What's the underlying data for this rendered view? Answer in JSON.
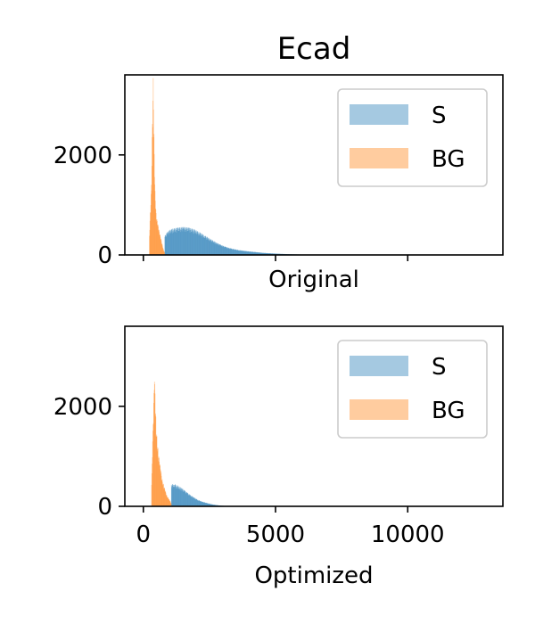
{
  "figure": {
    "title": "Ecad"
  },
  "chart_data": [
    {
      "type": "histogram",
      "xlabel": "Original",
      "ylabel": "",
      "xlim": [
        -700,
        13600
      ],
      "ylim": [
        0,
        3600
      ],
      "x_ticks": [
        0,
        5000,
        10000
      ],
      "x_tick_labels_shown": false,
      "y_ticks": [
        0,
        2000
      ],
      "y_tick_labels": [
        "0",
        "2000"
      ],
      "legend": {
        "placement": "upper right",
        "entries": [
          "S",
          "BG"
        ]
      },
      "series": [
        {
          "name": "S",
          "color": "#1f77b4",
          "opacity": 0.4,
          "points": [
            [
              800,
              350
            ],
            [
              900,
              420
            ],
            [
              1000,
              460
            ],
            [
              1100,
              480
            ],
            [
              1300,
              500
            ],
            [
              1500,
              510
            ],
            [
              1700,
              500
            ],
            [
              1900,
              470
            ],
            [
              2100,
              420
            ],
            [
              2300,
              360
            ],
            [
              2500,
              300
            ],
            [
              2700,
              240
            ],
            [
              2900,
              190
            ],
            [
              3100,
              150
            ],
            [
              3300,
              120
            ],
            [
              3600,
              90
            ],
            [
              3900,
              70
            ],
            [
              4200,
              55
            ],
            [
              4500,
              40
            ],
            [
              4800,
              30
            ],
            [
              5200,
              20
            ],
            [
              5600,
              12
            ],
            [
              6000,
              8
            ],
            [
              6500,
              5
            ],
            [
              7000,
              3
            ],
            [
              8000,
              1
            ]
          ]
        },
        {
          "name": "BG",
          "color": "#ff7f0e",
          "opacity": 0.4,
          "points": [
            [
              220,
              400
            ],
            [
              260,
              900
            ],
            [
              300,
              1400
            ],
            [
              330,
              2600
            ],
            [
              360,
              3300
            ],
            [
              390,
              2200
            ],
            [
              420,
              1300
            ],
            [
              450,
              900
            ],
            [
              480,
              700
            ],
            [
              520,
              600
            ],
            [
              560,
              500
            ],
            [
              600,
              400
            ],
            [
              650,
              300
            ],
            [
              700,
              200
            ],
            [
              750,
              100
            ],
            [
              800,
              30
            ]
          ]
        }
      ]
    },
    {
      "type": "histogram",
      "xlabel": "Optimized",
      "ylabel": "",
      "xlim": [
        -700,
        13600
      ],
      "ylim": [
        0,
        3600
      ],
      "x_ticks": [
        0,
        5000,
        10000
      ],
      "x_tick_labels": [
        "0",
        "5000",
        "10000"
      ],
      "y_ticks": [
        0,
        2000
      ],
      "y_tick_labels": [
        "0",
        "2000"
      ],
      "legend": {
        "placement": "upper right",
        "entries": [
          "S",
          "BG"
        ]
      },
      "series": [
        {
          "name": "S",
          "color": "#1f77b4",
          "opacity": 0.4,
          "points": [
            [
              1050,
              400
            ],
            [
              1150,
              410
            ],
            [
              1250,
              390
            ],
            [
              1350,
              360
            ],
            [
              1450,
              330
            ],
            [
              1550,
              290
            ],
            [
              1650,
              250
            ],
            [
              1750,
              210
            ],
            [
              1850,
              180
            ],
            [
              1950,
              150
            ],
            [
              2050,
              120
            ],
            [
              2200,
              90
            ],
            [
              2400,
              60
            ],
            [
              2600,
              35
            ],
            [
              2800,
              20
            ],
            [
              3000,
              10
            ],
            [
              3300,
              4
            ],
            [
              3600,
              1
            ]
          ]
        },
        {
          "name": "BG",
          "color": "#ff7f0e",
          "opacity": 0.4,
          "points": [
            [
              300,
              400
            ],
            [
              340,
              1200
            ],
            [
              380,
              1900
            ],
            [
              410,
              2400
            ],
            [
              440,
              1900
            ],
            [
              470,
              1500
            ],
            [
              510,
              1200
            ],
            [
              550,
              1000
            ],
            [
              600,
              800
            ],
            [
              650,
              650
            ],
            [
              700,
              500
            ],
            [
              760,
              380
            ],
            [
              820,
              280
            ],
            [
              880,
              200
            ],
            [
              940,
              140
            ],
            [
              1000,
              100
            ],
            [
              1050,
              40
            ]
          ]
        }
      ]
    }
  ]
}
